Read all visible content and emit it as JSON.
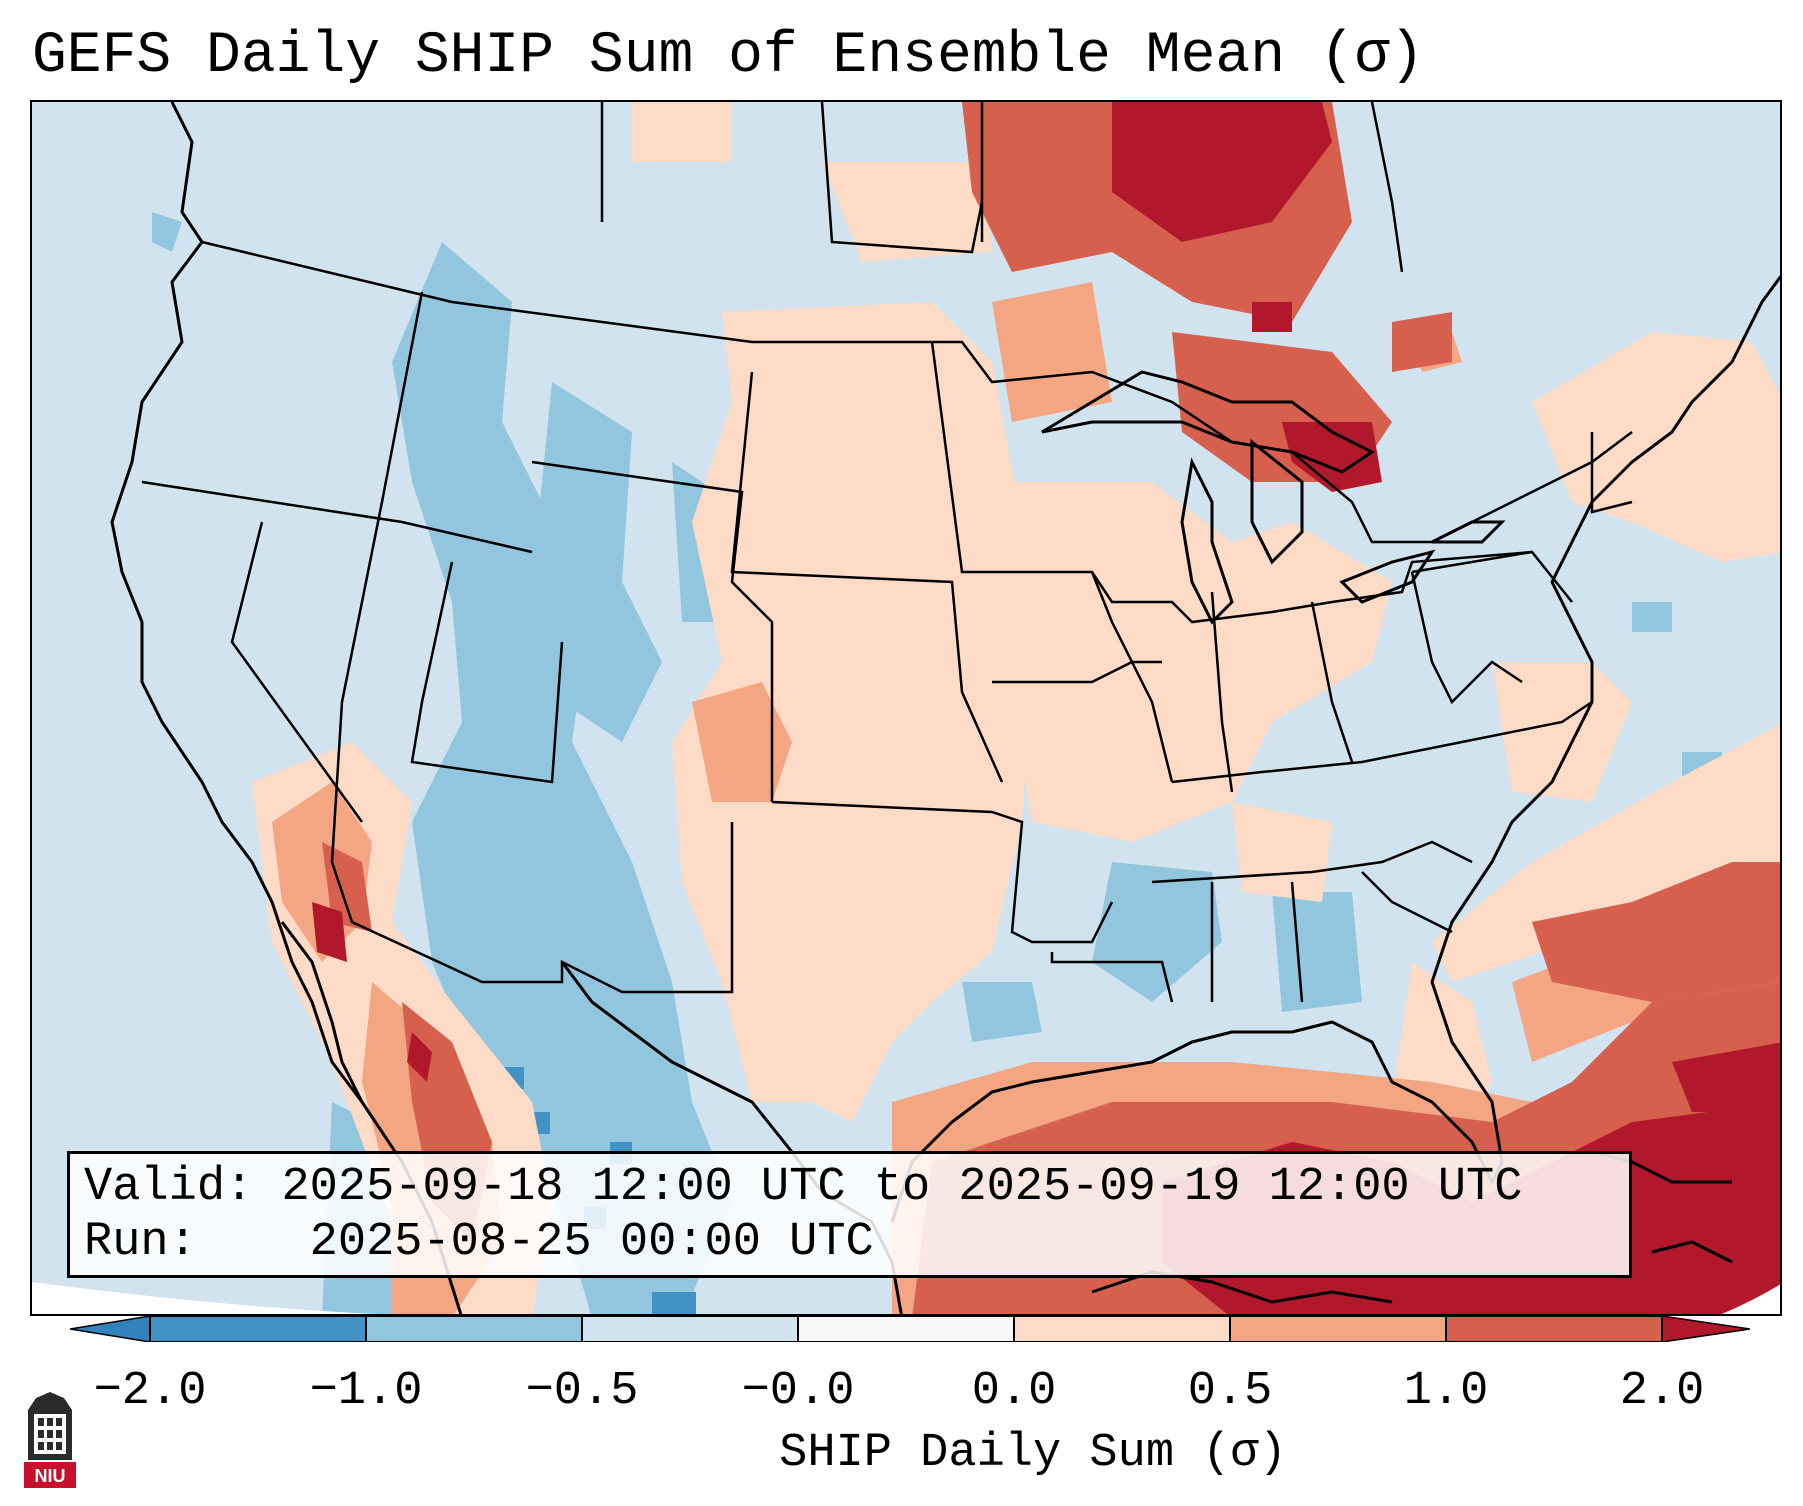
{
  "title": "GEFS Daily SHIP Sum of Ensemble Mean (σ)",
  "info": {
    "valid_label": "Valid:",
    "valid_text": "2025-09-18 12:00 UTC to 2025-09-19 12:00 UTC",
    "run_label": "Run:",
    "run_text": "2025-08-25 00:00 UTC"
  },
  "colorbar": {
    "label": "SHIP Daily Sum (σ)",
    "tick_labels": [
      "−2.0",
      "−1.0",
      "−0.5",
      "−0.0",
      "0.0",
      "0.5",
      "1.0",
      "2.0"
    ],
    "bounds": [
      -2.0,
      -1.0,
      -0.5,
      -0.0,
      0.0,
      0.5,
      1.0,
      2.0
    ],
    "colors": {
      "below_min": "#3182bd",
      "b_-2_-1": "#4292c6",
      "b_-1_-0.5": "#92c5de",
      "b_-0.5_0": "#d1e5f0",
      "b_0_0": "#f7f7f7",
      "b_0_0.5": "#fddbc7",
      "b_0.5_1": "#f4a582",
      "b_1_2": "#d6604d",
      "above_max": "#b2182b"
    }
  },
  "map": {
    "ocean_color": "#d0e3ef",
    "region_labels": []
  },
  "logo": {
    "text": "NIU",
    "color": "#c8102e"
  }
}
